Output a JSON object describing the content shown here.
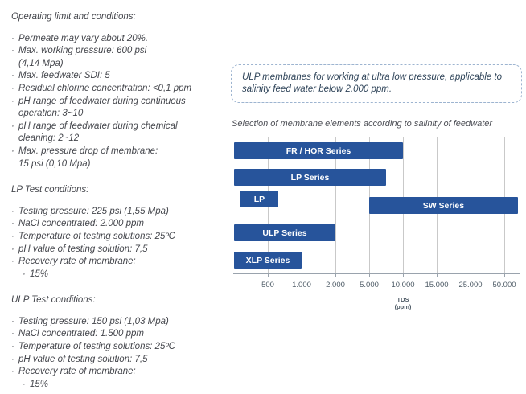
{
  "left_panel": {
    "sections": [
      {
        "title": "Operating limit and conditions:",
        "items": [
          {
            "text": "Permeate may vary about 20%."
          },
          {
            "text": "Max. working pressure: 600 psi\n(4,14 Mpa)"
          },
          {
            "text": "Max. feedwater SDI: 5"
          },
          {
            "text": "Residual chlorine concentration: <0,1 ppm"
          },
          {
            "text": "pH range of feedwater during continuous\noperation: 3~10"
          },
          {
            "text": "pH range of feedwater during chemical\ncleaning: 2~12"
          },
          {
            "text": "Max. pressure drop of membrane:\n15 psi (0,10 Mpa)"
          }
        ]
      },
      {
        "title": "LP Test conditions:",
        "items": [
          {
            "text": "Testing pressure: 225 psi (1,55 Mpa)"
          },
          {
            "text": "NaCl concentrated: 2.000 ppm"
          },
          {
            "text": "Temperature of testing solutions: 25ºC"
          },
          {
            "text": "pH value of testing solution: 7,5"
          },
          {
            "text": "Recovery rate of membrane:"
          },
          {
            "text": "15%",
            "indent": 1
          }
        ]
      },
      {
        "title": "ULP Test conditions:",
        "items": [
          {
            "text": "Testing pressure: 150 psi (1,03 Mpa)"
          },
          {
            "text": "NaCl concentrated: 1.500 ppm"
          },
          {
            "text": "Temperature of testing solutions: 25ºC"
          },
          {
            "text": "pH value of testing solution: 7,5"
          },
          {
            "text": "Recovery rate of membrane:"
          },
          {
            "text": "15%",
            "indent": 1
          }
        ]
      }
    ]
  },
  "callout": {
    "text": "ULP membranes for working at ultra low pressure, applicable to salinity feed water below 2,000 ppm."
  },
  "chart": {
    "caption": "Selection of membrane elements according to salinity of feedwater"
  },
  "chart_data": {
    "type": "bar",
    "orientation": "horizontal",
    "title": "Selection of membrane elements according to salinity of feedwater",
    "xlabel": "TDS (ppm)",
    "xlabel_line1": "TDS",
    "xlabel_line2": "(ppm)",
    "ticks": [
      500,
      1000,
      2000,
      5000,
      10000,
      15000,
      25000,
      50000
    ],
    "tick_labels": [
      "500",
      "1.000",
      "2.000",
      "5.000",
      "10.000",
      "15.000",
      "25.000",
      "50.000"
    ],
    "bars": [
      {
        "label": "FR / HOR Series",
        "tds_from": 0,
        "tds_to": 10000
      },
      {
        "label": "LP Series",
        "tds_from": 0,
        "tds_to": 7500
      },
      {
        "label": "LP",
        "tds_from": 100,
        "tds_to": 650
      },
      {
        "label": "SW Series",
        "tds_from": 5000,
        "tds_to": 60000
      },
      {
        "label": "ULP Series",
        "tds_from": 0,
        "tds_to": 2000
      },
      {
        "label": "XLP Series",
        "tds_from": 0,
        "tds_to": 1000
      }
    ],
    "bar_color": "#27549b",
    "grid": true,
    "legend": false
  },
  "colors": {
    "bar": "#27549b",
    "body_text": "#45474d",
    "grid": "#c9c9c9",
    "callout_border": "#9db4d0"
  }
}
